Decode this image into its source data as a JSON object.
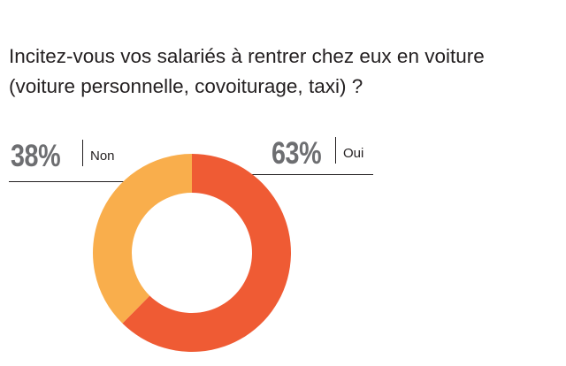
{
  "question": {
    "line1": "Incitez-vous vos salariés à rentrer chez eux en voiture",
    "line2": "(voiture personnelle, covoiturage, taxi) ?"
  },
  "labels": {
    "non": {
      "pct": "38%",
      "word": "Non"
    },
    "oui": {
      "pct": "63%",
      "word": "Oui"
    }
  },
  "chart_data": {
    "type": "pie",
    "style": "donut",
    "categories": [
      "Oui",
      "Non"
    ],
    "values": [
      63,
      38
    ],
    "colors": [
      "#ef5b34",
      "#f9ae4c"
    ]
  }
}
